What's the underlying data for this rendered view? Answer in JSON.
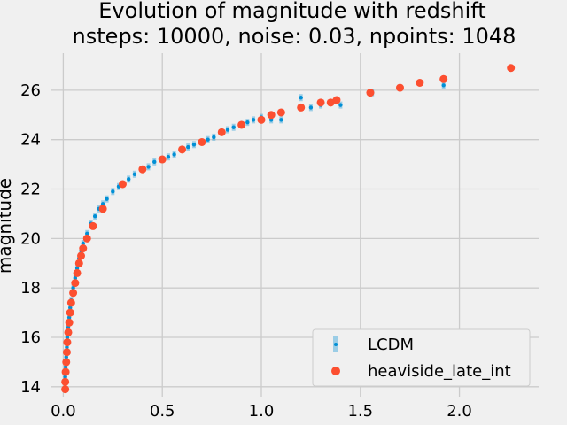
{
  "chart_data": {
    "type": "scatter",
    "title": [
      "Evolution of magnitude with redshift",
      "nsteps: 10000, noise: 0.03, npoints: 1048"
    ],
    "xlabel": "",
    "ylabel": "magnitude",
    "xlim": [
      -0.06,
      2.4
    ],
    "ylim": [
      13.6,
      27.5
    ],
    "xticks": [
      0.0,
      0.5,
      1.0,
      1.5,
      2.0
    ],
    "xtick_labels": [
      "0.0",
      "0.5",
      "1.0",
      "1.5",
      "2.0"
    ],
    "yticks": [
      14,
      16,
      18,
      20,
      22,
      24,
      26
    ],
    "ytick_labels": [
      "14",
      "16",
      "18",
      "20",
      "22",
      "24",
      "26"
    ],
    "grid": true,
    "legend": {
      "placement": "lower-right"
    },
    "series": [
      {
        "name": "LCDM",
        "color": "#008fd5",
        "marker": "errorbar-point",
        "points": [
          [
            0.01,
            13.9
          ],
          [
            0.01,
            14.4
          ],
          [
            0.012,
            14.8
          ],
          [
            0.015,
            15.2
          ],
          [
            0.018,
            15.6
          ],
          [
            0.02,
            16.0
          ],
          [
            0.025,
            16.4
          ],
          [
            0.03,
            16.8
          ],
          [
            0.035,
            17.2
          ],
          [
            0.04,
            17.5
          ],
          [
            0.05,
            18.0
          ],
          [
            0.06,
            18.4
          ],
          [
            0.07,
            18.8
          ],
          [
            0.08,
            19.2
          ],
          [
            0.09,
            19.5
          ],
          [
            0.1,
            19.8
          ],
          [
            0.12,
            20.2
          ],
          [
            0.14,
            20.6
          ],
          [
            0.16,
            20.9
          ],
          [
            0.18,
            21.2
          ],
          [
            0.2,
            21.4
          ],
          [
            0.22,
            21.6
          ],
          [
            0.25,
            21.9
          ],
          [
            0.28,
            22.1
          ],
          [
            0.3,
            22.2
          ],
          [
            0.33,
            22.4
          ],
          [
            0.36,
            22.6
          ],
          [
            0.4,
            22.8
          ],
          [
            0.43,
            22.9
          ],
          [
            0.46,
            23.1
          ],
          [
            0.5,
            23.2
          ],
          [
            0.53,
            23.3
          ],
          [
            0.56,
            23.4
          ],
          [
            0.6,
            23.6
          ],
          [
            0.63,
            23.7
          ],
          [
            0.66,
            23.8
          ],
          [
            0.7,
            23.9
          ],
          [
            0.73,
            24.0
          ],
          [
            0.76,
            24.1
          ],
          [
            0.8,
            24.3
          ],
          [
            0.83,
            24.4
          ],
          [
            0.86,
            24.5
          ],
          [
            0.9,
            24.6
          ],
          [
            0.93,
            24.7
          ],
          [
            0.96,
            24.8
          ],
          [
            1.0,
            24.9
          ],
          [
            1.05,
            24.8
          ],
          [
            1.1,
            24.8
          ],
          [
            1.2,
            25.7
          ],
          [
            1.25,
            25.3
          ],
          [
            1.3,
            25.4
          ],
          [
            1.4,
            25.4
          ],
          [
            1.56,
            25.9
          ],
          [
            1.7,
            26.1
          ],
          [
            1.92,
            26.2
          ],
          [
            2.26,
            26.9
          ]
        ]
      },
      {
        "name": "heaviside_late_int",
        "color": "#fc4f30",
        "marker": "circle",
        "points": [
          [
            0.01,
            13.9
          ],
          [
            0.01,
            14.2
          ],
          [
            0.012,
            14.6
          ],
          [
            0.015,
            15.0
          ],
          [
            0.018,
            15.4
          ],
          [
            0.02,
            15.8
          ],
          [
            0.025,
            16.2
          ],
          [
            0.03,
            16.6
          ],
          [
            0.035,
            17.0
          ],
          [
            0.04,
            17.4
          ],
          [
            0.05,
            17.8
          ],
          [
            0.06,
            18.2
          ],
          [
            0.07,
            18.6
          ],
          [
            0.08,
            19.0
          ],
          [
            0.09,
            19.3
          ],
          [
            0.1,
            19.6
          ],
          [
            0.12,
            20.0
          ],
          [
            0.15,
            20.5
          ],
          [
            0.2,
            21.2
          ],
          [
            0.3,
            22.2
          ],
          [
            0.4,
            22.8
          ],
          [
            0.5,
            23.2
          ],
          [
            0.6,
            23.6
          ],
          [
            0.7,
            23.9
          ],
          [
            0.8,
            24.3
          ],
          [
            0.9,
            24.6
          ],
          [
            1.0,
            24.8
          ],
          [
            1.05,
            25.0
          ],
          [
            1.1,
            25.1
          ],
          [
            1.2,
            25.3
          ],
          [
            1.3,
            25.5
          ],
          [
            1.35,
            25.5
          ],
          [
            1.38,
            25.6
          ],
          [
            1.55,
            25.9
          ],
          [
            1.7,
            26.1
          ],
          [
            1.8,
            26.3
          ],
          [
            1.92,
            26.45
          ],
          [
            2.26,
            26.9
          ]
        ]
      }
    ]
  }
}
